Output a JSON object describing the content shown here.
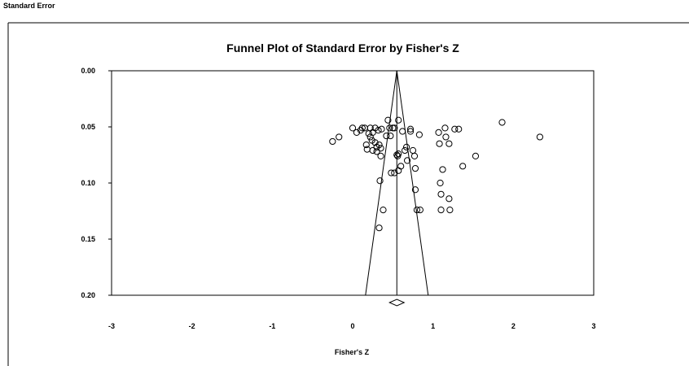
{
  "window_caption": "Standard Error",
  "chart_data": {
    "type": "scatter",
    "title": "Funnel Plot of Standard Error by Fisher's Z",
    "xlabel": "Fisher's Z",
    "ylabel": "",
    "xlim": [
      -3,
      3
    ],
    "ylim": [
      0.0,
      0.2
    ],
    "y_inverted": true,
    "x_ticks": [
      "-3",
      "-2",
      "-1",
      "0",
      "1",
      "2",
      "3"
    ],
    "y_ticks": [
      "0.00",
      "0.05",
      "0.10",
      "0.15",
      "0.20"
    ],
    "grid": false,
    "legend": "none",
    "marker": "open-circle",
    "funnel": {
      "center": 0.55,
      "apex_se": 0.0,
      "bottom_se": 0.2,
      "bottom_left_x": 0.16,
      "bottom_right_x": 0.94
    },
    "summary_diamond": {
      "x": 0.55,
      "se": 0.2
    },
    "points": [
      [
        -0.25,
        0.063
      ],
      [
        -0.17,
        0.059
      ],
      [
        0.0,
        0.051
      ],
      [
        0.05,
        0.055
      ],
      [
        0.1,
        0.053
      ],
      [
        0.12,
        0.051
      ],
      [
        0.15,
        0.051
      ],
      [
        0.17,
        0.066
      ],
      [
        0.18,
        0.07
      ],
      [
        0.2,
        0.056
      ],
      [
        0.22,
        0.051
      ],
      [
        0.22,
        0.059
      ],
      [
        0.24,
        0.062
      ],
      [
        0.25,
        0.055
      ],
      [
        0.25,
        0.071
      ],
      [
        0.28,
        0.051
      ],
      [
        0.28,
        0.064
      ],
      [
        0.3,
        0.068
      ],
      [
        0.3,
        0.072
      ],
      [
        0.32,
        0.053
      ],
      [
        0.33,
        0.066
      ],
      [
        0.34,
        0.098
      ],
      [
        0.35,
        0.076
      ],
      [
        0.35,
        0.069
      ],
      [
        0.36,
        0.052
      ],
      [
        0.38,
        0.124
      ],
      [
        0.33,
        0.14
      ],
      [
        0.42,
        0.058
      ],
      [
        0.44,
        0.044
      ],
      [
        0.46,
        0.051
      ],
      [
        0.47,
        0.058
      ],
      [
        0.5,
        0.051
      ],
      [
        0.52,
        0.051
      ],
      [
        0.52,
        0.091
      ],
      [
        0.55,
        0.075
      ],
      [
        0.56,
        0.076
      ],
      [
        0.57,
        0.074
      ],
      [
        0.57,
        0.089
      ],
      [
        0.57,
        0.044
      ],
      [
        0.6,
        0.085
      ],
      [
        0.62,
        0.054
      ],
      [
        0.65,
        0.071
      ],
      [
        0.67,
        0.068
      ],
      [
        0.68,
        0.08
      ],
      [
        0.72,
        0.052
      ],
      [
        0.72,
        0.054
      ],
      [
        0.75,
        0.071
      ],
      [
        0.77,
        0.076
      ],
      [
        0.78,
        0.087
      ],
      [
        0.78,
        0.106
      ],
      [
        0.8,
        0.124
      ],
      [
        0.83,
        0.057
      ],
      [
        0.84,
        0.124
      ],
      [
        0.48,
        0.091
      ],
      [
        1.07,
        0.055
      ],
      [
        1.08,
        0.065
      ],
      [
        1.09,
        0.1
      ],
      [
        1.1,
        0.124
      ],
      [
        1.1,
        0.11
      ],
      [
        1.12,
        0.088
      ],
      [
        1.15,
        0.051
      ],
      [
        1.16,
        0.059
      ],
      [
        1.2,
        0.065
      ],
      [
        1.2,
        0.114
      ],
      [
        1.21,
        0.124
      ],
      [
        1.27,
        0.052
      ],
      [
        1.32,
        0.052
      ],
      [
        1.37,
        0.085
      ],
      [
        1.53,
        0.076
      ],
      [
        1.86,
        0.046
      ],
      [
        2.33,
        0.059
      ]
    ]
  }
}
